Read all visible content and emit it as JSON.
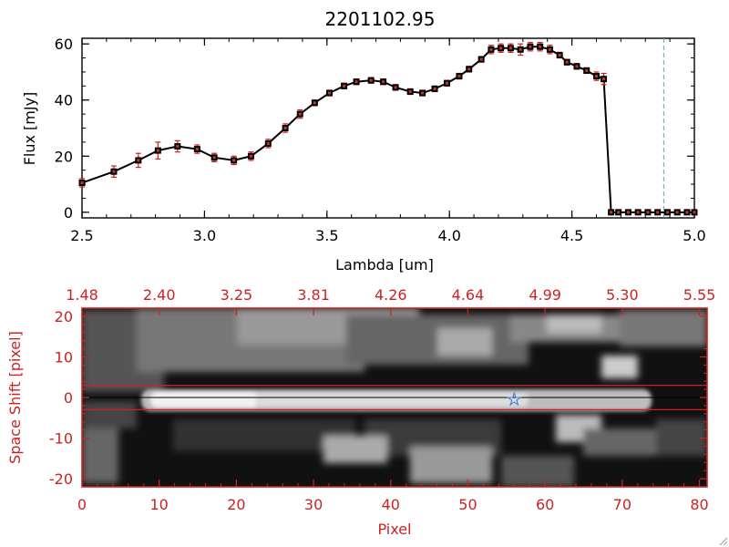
{
  "title": "2201102.95",
  "colors": {
    "line": "#000000",
    "marker": "#c0392b",
    "error_bar": "#cc2222",
    "red_axis": "#cc2222",
    "dashed_marker": "#4aa8b8",
    "star": "#3a7bd5"
  },
  "chart_data": [
    {
      "type": "line",
      "title": "2201102.95",
      "xlabel": "Lambda [um]",
      "ylabel": "Flux [mJy]",
      "xlim": [
        2.5,
        5.0
      ],
      "ylim": [
        -2,
        62
      ],
      "xticks": [
        "2.5",
        "3.0",
        "3.5",
        "4.0",
        "4.5",
        "5.0"
      ],
      "yticks": [
        "0",
        "20",
        "40",
        "60"
      ],
      "vertical_dashed_line_x": 4.875,
      "series": [
        {
          "name": "flux",
          "x": [
            2.5,
            2.63,
            2.73,
            2.81,
            2.89,
            2.97,
            3.04,
            3.12,
            3.19,
            3.26,
            3.33,
            3.39,
            3.45,
            3.51,
            3.57,
            3.62,
            3.68,
            3.73,
            3.78,
            3.84,
            3.89,
            3.94,
            3.99,
            4.04,
            4.08,
            4.13,
            4.17,
            4.21,
            4.25,
            4.29,
            4.33,
            4.37,
            4.41,
            4.45,
            4.48,
            4.52,
            4.56,
            4.6,
            4.63,
            4.66,
            4.69,
            4.73,
            4.77,
            4.81,
            4.85,
            4.89,
            4.93,
            4.97,
            5.0
          ],
          "y": [
            10.5,
            14.5,
            18.5,
            22.0,
            23.5,
            22.5,
            19.5,
            18.5,
            20.0,
            24.5,
            30.0,
            35.0,
            39.0,
            42.5,
            45.0,
            46.5,
            47.0,
            46.5,
            44.5,
            43.0,
            42.5,
            44.0,
            46.0,
            48.5,
            51.0,
            54.5,
            58.0,
            58.5,
            58.5,
            58.0,
            59.0,
            59.0,
            58.0,
            56.0,
            53.5,
            52.0,
            50.5,
            48.5,
            47.5,
            0,
            0,
            0,
            0,
            0,
            0,
            0,
            0,
            0,
            0
          ],
          "error": [
            1.5,
            2.0,
            2.5,
            3.0,
            2.0,
            1.5,
            1.5,
            1.5,
            1.5,
            1.5,
            1.5,
            1.5,
            1.0,
            1.0,
            1.0,
            1.0,
            1.0,
            1.0,
            1.0,
            1.0,
            1.0,
            1.0,
            1.0,
            1.0,
            1.0,
            1.0,
            1.5,
            1.5,
            1.5,
            2.0,
            1.5,
            1.5,
            1.5,
            1.0,
            1.0,
            1.0,
            1.0,
            1.5,
            2.0,
            0,
            0,
            0,
            0,
            0,
            0,
            0,
            0,
            0,
            0
          ]
        }
      ]
    },
    {
      "type": "heatmap",
      "xlabel": "Pixel",
      "ylabel": "Space Shift [pixel]",
      "xlim": [
        0,
        81
      ],
      "ylim": [
        -22,
        22
      ],
      "xticks": [
        "0",
        "10",
        "20",
        "30",
        "40",
        "50",
        "60",
        "70",
        "80"
      ],
      "yticks": [
        "-20",
        "-10",
        "0",
        "10",
        "20"
      ],
      "top_axis_ticks": [
        "1.48",
        "2.40",
        "3.25",
        "3.81",
        "4.26",
        "4.64",
        "4.99",
        "5.30",
        "5.55"
      ],
      "aperture_lines_y": [
        3,
        -3
      ],
      "center_line_y": 0,
      "star_marker": {
        "x": 56,
        "y": -0.5
      },
      "data_extent_x": [
        0,
        81
      ]
    }
  ]
}
